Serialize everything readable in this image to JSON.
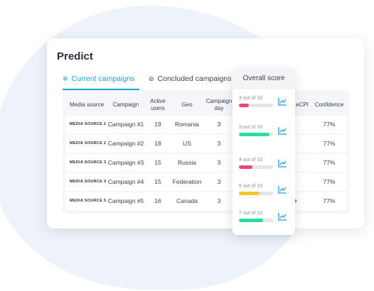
{
  "app": {
    "title": "Predict"
  },
  "tabs": [
    {
      "label": "Current campaigns",
      "active": true,
      "icon": "sparkle-icon"
    },
    {
      "label": "Concluded campaigns",
      "active": false,
      "icon": "check-circle-icon"
    }
  ],
  "table": {
    "headers": {
      "source": "Media source",
      "campaign": "Campaign",
      "active": [
        "Active",
        "users"
      ],
      "geo": "Geo",
      "day": [
        "Campaign",
        "day"
      ],
      "ecpi": "eCPI",
      "confidence": "Confidence"
    },
    "rows": [
      {
        "source": "MEDIA SOURCE 1",
        "campaign": "Campaign #1",
        "active": "19",
        "geo": "Romania",
        "day": "3",
        "confidence": "77%"
      },
      {
        "source": "MEDIA SOURCE 2",
        "campaign": "Campaign #2",
        "active": "18",
        "geo": "US",
        "day": "3",
        "confidence": "77%"
      },
      {
        "source": "MEDIA SOURCE 3",
        "campaign": "Campaign #3",
        "active": "15",
        "geo": "Russia",
        "day": "3",
        "confidence": "77%"
      },
      {
        "source": "MEDIA SOURCE 4",
        "campaign": "Campaign #4",
        "active": "15",
        "geo": "Federation",
        "day": "3",
        "confidence": "77%"
      },
      {
        "source": "MEDIA SOURCE 5",
        "campaign": "Campaign #5",
        "active": "16",
        "geo": "Canada",
        "day": "3",
        "confidence": "77%"
      }
    ]
  },
  "score_panel": {
    "header": "Overall score",
    "items": [
      {
        "label": "3 out of 10",
        "score": 3,
        "color": "#f0437a"
      },
      {
        "label": "9 out of 10",
        "score": 9,
        "color": "#27dfa1"
      },
      {
        "label": "4 out of 10",
        "score": 4,
        "color": "#f0437a"
      },
      {
        "label": "6 out of 10",
        "score": 6,
        "color": "#f8c62b"
      },
      {
        "label": "7 out of 10",
        "score": 7,
        "color": "#27dfa1"
      }
    ],
    "trend_icon": "trend-up-icon",
    "trend_color": "#1aa0d8"
  },
  "colors": {
    "accent": "#1aa0d8",
    "bg_blob": "#eef3f9"
  }
}
